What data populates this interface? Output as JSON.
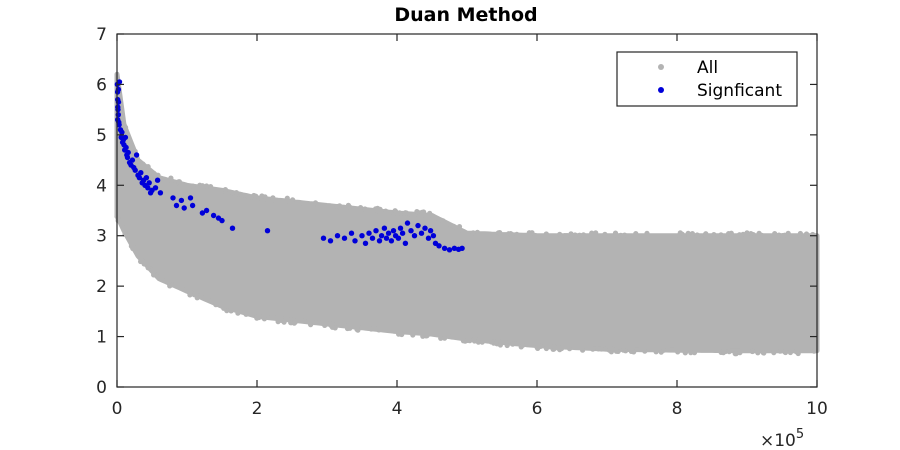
{
  "chart_data": {
    "type": "scatter",
    "title": "Duan Method",
    "xlabel": "",
    "ylabel": "",
    "xlim": [
      0,
      1000000
    ],
    "ylim": [
      0,
      7
    ],
    "x_ticks": [
      0,
      200000,
      400000,
      600000,
      800000,
      1000000
    ],
    "x_tick_labels": [
      "0",
      "2",
      "4",
      "6",
      "8",
      "10"
    ],
    "x_exponent_label": {
      "prefix": "×10",
      "power": "5"
    },
    "y_ticks": [
      0,
      1,
      2,
      3,
      4,
      5,
      6,
      7
    ],
    "y_tick_labels": [
      "0",
      "1",
      "2",
      "3",
      "4",
      "5",
      "6",
      "7"
    ],
    "grid": false,
    "legend_position": "top-right",
    "series": [
      {
        "name": "All",
        "color": "#b3b3b3",
        "kind": "band",
        "band_profile": {
          "x": [
            0,
            10000,
            30000,
            60000,
            100000,
            150000,
            200000,
            300000,
            400000,
            450000,
            500000,
            600000,
            700000,
            800000,
            900000,
            1000000
          ],
          "lower": [
            3.4,
            3.1,
            2.6,
            2.15,
            1.9,
            1.6,
            1.4,
            1.25,
            1.1,
            1.05,
            0.95,
            0.82,
            0.75,
            0.73,
            0.72,
            0.72
          ],
          "upper": [
            6.2,
            5.2,
            4.5,
            4.15,
            4.0,
            3.9,
            3.75,
            3.6,
            3.45,
            3.4,
            3.05,
            3.0,
            3.0,
            3.0,
            3.0,
            3.0
          ]
        }
      },
      {
        "name": "Signficant",
        "color": "#0000d9",
        "kind": "points",
        "points": [
          [
            500,
            6.0
          ],
          [
            800,
            5.85
          ],
          [
            1000,
            5.7
          ],
          [
            1200,
            5.55
          ],
          [
            1500,
            5.5
          ],
          [
            1800,
            5.4
          ],
          [
            2000,
            5.9
          ],
          [
            2500,
            5.25
          ],
          [
            3000,
            5.2
          ],
          [
            3500,
            6.05
          ],
          [
            1000,
            5.3
          ],
          [
            2200,
            5.65
          ],
          [
            5000,
            5.1
          ],
          [
            6000,
            4.95
          ],
          [
            7000,
            5.05
          ],
          [
            8000,
            4.85
          ],
          [
            9000,
            4.9
          ],
          [
            10000,
            4.8
          ],
          [
            11000,
            4.7
          ],
          [
            12000,
            4.95
          ],
          [
            13000,
            4.75
          ],
          [
            14000,
            4.6
          ],
          [
            15000,
            4.55
          ],
          [
            16000,
            4.65
          ],
          [
            18000,
            4.45
          ],
          [
            20000,
            4.4
          ],
          [
            22000,
            4.5
          ],
          [
            24000,
            4.35
          ],
          [
            26000,
            4.3
          ],
          [
            28000,
            4.6
          ],
          [
            30000,
            4.2
          ],
          [
            32000,
            4.15
          ],
          [
            34000,
            4.25
          ],
          [
            36000,
            4.05
          ],
          [
            38000,
            4.1
          ],
          [
            40000,
            4.0
          ],
          [
            42000,
            4.15
          ],
          [
            44000,
            3.95
          ],
          [
            46000,
            4.05
          ],
          [
            48000,
            3.85
          ],
          [
            50000,
            3.9
          ],
          [
            55000,
            3.95
          ],
          [
            58000,
            4.1
          ],
          [
            62000,
            3.85
          ],
          [
            80000,
            3.75
          ],
          [
            85000,
            3.6
          ],
          [
            92000,
            3.7
          ],
          [
            96000,
            3.55
          ],
          [
            105000,
            3.75
          ],
          [
            108000,
            3.6
          ],
          [
            122000,
            3.45
          ],
          [
            128000,
            3.5
          ],
          [
            138000,
            3.4
          ],
          [
            145000,
            3.35
          ],
          [
            150000,
            3.3
          ],
          [
            165000,
            3.15
          ],
          [
            215000,
            3.1
          ],
          [
            295000,
            2.95
          ],
          [
            305000,
            2.9
          ],
          [
            315000,
            3.0
          ],
          [
            325000,
            2.95
          ],
          [
            335000,
            3.05
          ],
          [
            340000,
            2.9
          ],
          [
            350000,
            3.0
          ],
          [
            355000,
            2.85
          ],
          [
            360000,
            3.05
          ],
          [
            365000,
            2.95
          ],
          [
            370000,
            3.1
          ],
          [
            375000,
            2.9
          ],
          [
            378000,
            3.0
          ],
          [
            382000,
            3.15
          ],
          [
            385000,
            2.95
          ],
          [
            388000,
            3.05
          ],
          [
            392000,
            2.9
          ],
          [
            395000,
            3.1
          ],
          [
            398000,
            3.0
          ],
          [
            402000,
            2.95
          ],
          [
            405000,
            3.15
          ],
          [
            408000,
            3.05
          ],
          [
            412000,
            2.85
          ],
          [
            415000,
            3.25
          ],
          [
            420000,
            3.1
          ],
          [
            425000,
            3.0
          ],
          [
            430000,
            3.2
          ],
          [
            435000,
            3.05
          ],
          [
            440000,
            3.15
          ],
          [
            445000,
            2.95
          ],
          [
            448000,
            3.1
          ],
          [
            452000,
            3.0
          ],
          [
            455000,
            2.85
          ],
          [
            460000,
            2.8
          ],
          [
            468000,
            2.75
          ],
          [
            475000,
            2.72
          ],
          [
            482000,
            2.75
          ],
          [
            488000,
            2.73
          ],
          [
            493000,
            2.75
          ]
        ]
      }
    ]
  }
}
